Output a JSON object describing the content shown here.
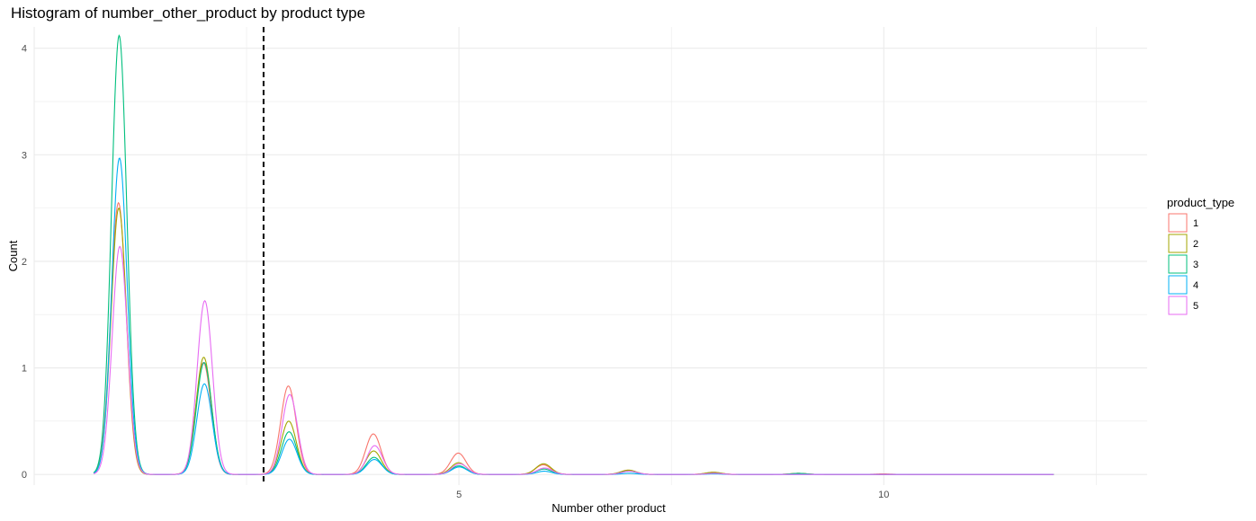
{
  "chart_data": {
    "type": "line",
    "title": "Histogram of number_other_product by product type",
    "xlabel": "Number other product",
    "ylabel": "Count",
    "xlim": [
      0.0,
      13.1
    ],
    "ylim": [
      -0.1,
      4.2
    ],
    "x_ticks": [
      5,
      10
    ],
    "y_ticks": [
      0,
      1,
      2,
      3,
      4
    ],
    "grid": true,
    "legend_position": "right",
    "vline": 2.7,
    "legend": {
      "title": "product_type",
      "items": [
        "1",
        "2",
        "3",
        "4",
        "5"
      ]
    },
    "x": [
      1,
      2,
      3,
      4,
      5,
      6,
      7,
      8,
      9,
      10,
      11,
      12
    ],
    "series": [
      {
        "name": "1",
        "color": "#F8766D",
        "values": [
          2.55,
          1.05,
          0.83,
          0.38,
          0.2,
          0.09,
          0.04,
          0.02,
          0.01,
          0.005,
          0.0,
          0.0
        ]
      },
      {
        "name": "2",
        "color": "#A3A500",
        "values": [
          2.5,
          1.1,
          0.5,
          0.22,
          0.11,
          0.1,
          0.04,
          0.02,
          0.01,
          0.0,
          0.0,
          0.0
        ]
      },
      {
        "name": "3",
        "color": "#00BF7D",
        "values": [
          4.12,
          1.05,
          0.4,
          0.16,
          0.08,
          0.05,
          0.03,
          0.01,
          0.01,
          0.0,
          0.0,
          0.0
        ]
      },
      {
        "name": "4",
        "color": "#00B0F6",
        "values": [
          2.97,
          0.85,
          0.33,
          0.14,
          0.07,
          0.03,
          0.01,
          0.005,
          0.0,
          0.0,
          0.0,
          0.0
        ]
      },
      {
        "name": "5",
        "color": "#E76BF3",
        "values": [
          2.14,
          1.63,
          0.75,
          0.27,
          0.1,
          0.06,
          0.03,
          0.01,
          0.0,
          0.0,
          0.0,
          0.0
        ]
      }
    ]
  }
}
